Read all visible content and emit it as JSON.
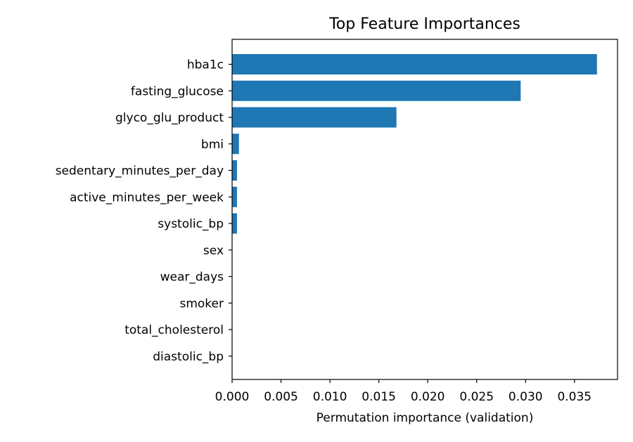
{
  "chart_data": {
    "type": "bar",
    "orientation": "horizontal",
    "title": "Top Feature Importances",
    "xlabel": "Permutation importance (validation)",
    "ylabel": "",
    "categories": [
      "hba1c",
      "fasting_glucose",
      "glyco_glu_product",
      "bmi",
      "sedentary_minutes_per_day",
      "active_minutes_per_week",
      "systolic_bp",
      "sex",
      "wear_days",
      "smoker",
      "total_cholesterol",
      "diastolic_bp"
    ],
    "values": [
      0.0373,
      0.0295,
      0.0168,
      0.0007,
      0.0005,
      0.0005,
      0.0005,
      0.0,
      0.0,
      0.0,
      0.0,
      0.0
    ],
    "xlim": [
      0,
      0.0394
    ],
    "xticks": [
      0.0,
      0.005,
      0.01,
      0.015,
      0.02,
      0.025,
      0.03,
      0.035
    ],
    "xtick_labels": [
      "0.000",
      "0.005",
      "0.010",
      "0.015",
      "0.020",
      "0.025",
      "0.030",
      "0.035"
    ],
    "bar_color": "#1f77b4",
    "grid": false,
    "legend": "none"
  }
}
